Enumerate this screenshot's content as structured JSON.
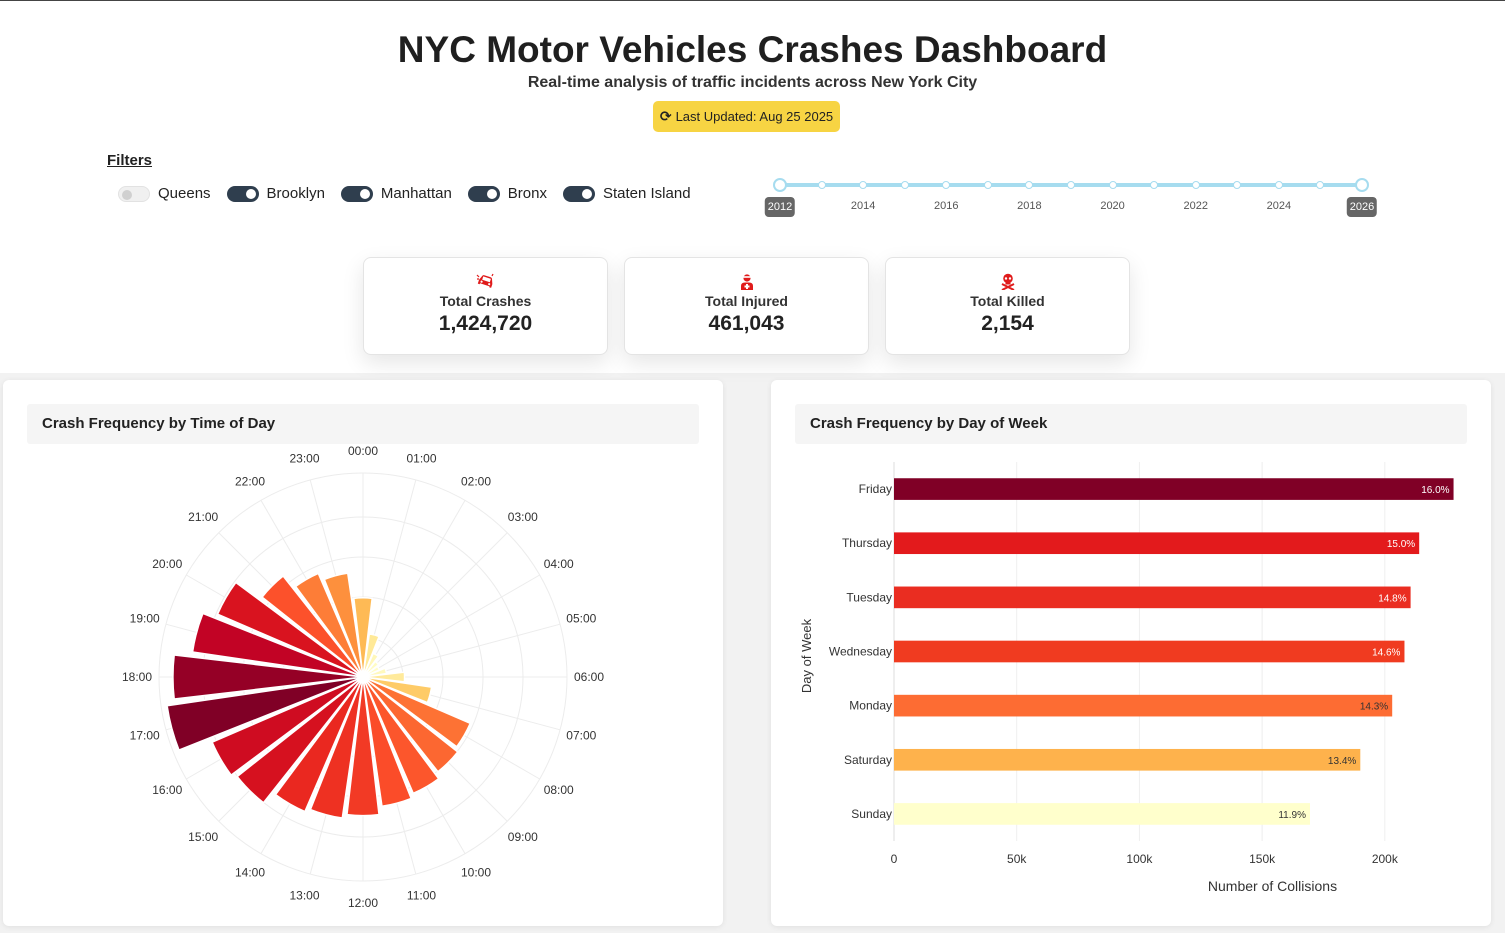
{
  "header": {
    "title": "NYC Motor Vehicles Crashes Dashboard",
    "subtitle": "Real-time analysis of traffic incidents across New York City",
    "last_updated": "Last Updated: Aug 25 2025"
  },
  "filters": {
    "label": "Filters",
    "boroughs": [
      {
        "label": "Queens",
        "enabled": false
      },
      {
        "label": "Brooklyn",
        "enabled": true
      },
      {
        "label": "Manhattan",
        "enabled": true
      },
      {
        "label": "Bronx",
        "enabled": true
      },
      {
        "label": "Staten Island",
        "enabled": true
      }
    ],
    "year_range": {
      "min": 2012,
      "max": 2026,
      "selected": [
        "2012",
        "2026"
      ],
      "tick_labels": [
        "2014",
        "2016",
        "2018",
        "2020",
        "2022",
        "2024"
      ]
    }
  },
  "kpis": [
    {
      "label": "Total Crashes",
      "value": "1,424,720",
      "icon": "car-crash-icon"
    },
    {
      "label": "Total Injured",
      "value": "461,043",
      "icon": "injured-person-icon"
    },
    {
      "label": "Total Killed",
      "value": "2,154",
      "icon": "skull-crossbones-icon"
    }
  ],
  "colors": {
    "accent": "#f7d443",
    "icon_red": "#e01b1b",
    "toggle_on": "#2f3e4e",
    "slider": "#a6dcef"
  },
  "chart_data": [
    {
      "type": "bar",
      "subtype": "polar",
      "title": "Crash Frequency by Time of Day",
      "categories": [
        "00:00",
        "01:00",
        "02:00",
        "03:00",
        "04:00",
        "05:00",
        "06:00",
        "07:00",
        "08:00",
        "09:00",
        "10:00",
        "11:00",
        "12:00",
        "13:00",
        "14:00",
        "15:00",
        "16:00",
        "17:00",
        "18:00",
        "19:00",
        "20:00",
        "21:00",
        "22:00",
        "23:00"
      ],
      "values": [
        40,
        22,
        13,
        10,
        9,
        12,
        21,
        35,
        59,
        61,
        64,
        66,
        70,
        72,
        74,
        81,
        83,
        100,
        96,
        87,
        80,
        65,
        57,
        53
      ],
      "color_scale": "YlOrRd"
    },
    {
      "type": "bar",
      "orientation": "horizontal",
      "title": "Crash Frequency by Day of Week",
      "xlabel": "Number of Collisions",
      "ylabel": "Day of Week",
      "categories": [
        "Friday",
        "Thursday",
        "Tuesday",
        "Wednesday",
        "Monday",
        "Saturday",
        "Sunday"
      ],
      "values": [
        228000,
        214000,
        210500,
        208000,
        203000,
        190000,
        169500
      ],
      "labels": [
        "16.0%",
        "15.0%",
        "14.8%",
        "14.6%",
        "14.3%",
        "13.4%",
        "11.9%"
      ],
      "colors": [
        "#800026",
        "#e31a1c",
        "#ea2d21",
        "#f03b20",
        "#fd6c33",
        "#feb24c",
        "#ffffcc"
      ],
      "label_colors": [
        "#ffffff",
        "#ffffff",
        "#ffffff",
        "#ffffff",
        "#333333",
        "#333333",
        "#333333"
      ],
      "x_ticks": [
        {
          "v": 0,
          "label": "0"
        },
        {
          "v": 50000,
          "label": "50k"
        },
        {
          "v": 100000,
          "label": "100k"
        },
        {
          "v": 150000,
          "label": "150k"
        },
        {
          "v": 200000,
          "label": "200k"
        }
      ],
      "xlim": [
        0,
        240000
      ]
    }
  ]
}
